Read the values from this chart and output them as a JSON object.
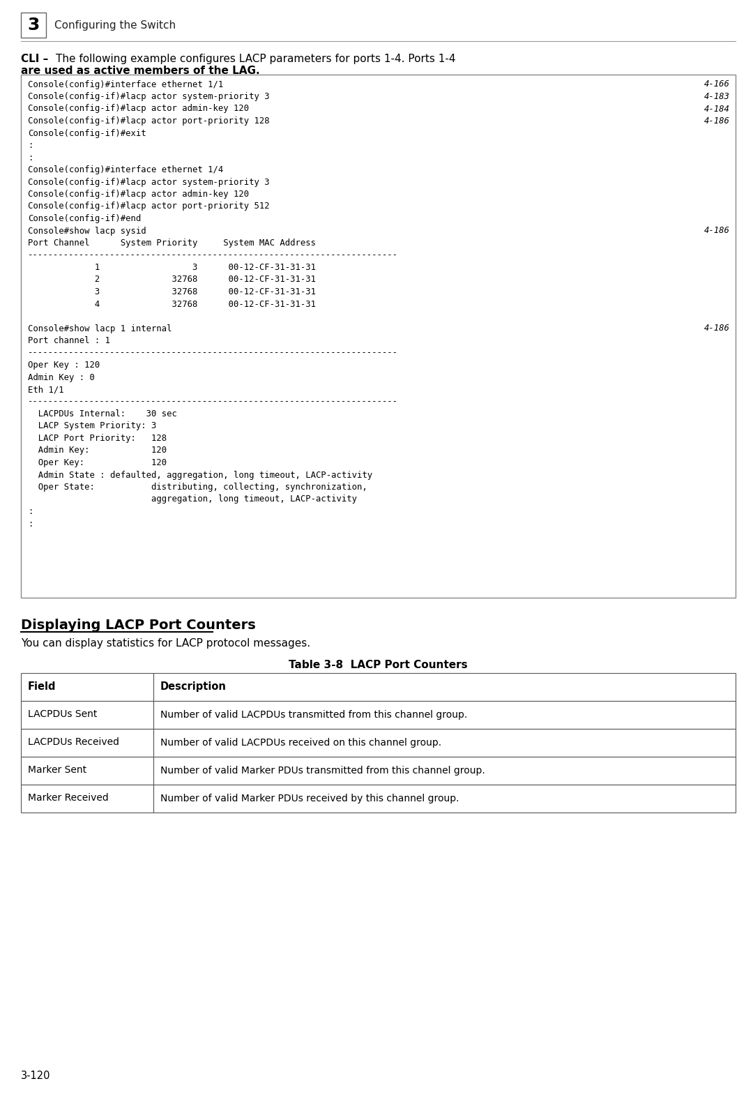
{
  "page_number": "3-120",
  "chapter_num": "3",
  "chapter_title": "Configuring the Switch",
  "cli_line1": "CLI – The following example configures LACP parameters for ports 1-4. Ports 1-4",
  "cli_line1_bold_prefix": "CLI – ",
  "cli_line1_normal": "The following example configures LACP parameters for ports 1-4. Ports 1-4",
  "cli_line2": "are used as active members of the LAG.",
  "code_lines": [
    [
      "Console(config)#interface ethernet 1/1",
      "4-166"
    ],
    [
      "Console(config-if)#lacp actor system-priority 3",
      "4-183"
    ],
    [
      "Console(config-if)#lacp actor admin-key 120",
      "4-184"
    ],
    [
      "Console(config-if)#lacp actor port-priority 128",
      "4-186"
    ],
    [
      "Console(config-if)#exit",
      ""
    ],
    [
      ":",
      ""
    ],
    [
      ":",
      ""
    ],
    [
      "Console(config)#interface ethernet 1/4",
      ""
    ],
    [
      "Console(config-if)#lacp actor system-priority 3",
      ""
    ],
    [
      "Console(config-if)#lacp actor admin-key 120",
      ""
    ],
    [
      "Console(config-if)#lacp actor port-priority 512",
      ""
    ],
    [
      "Console(config-if)#end",
      ""
    ],
    [
      "Console#show lacp sysid",
      "4-186"
    ],
    [
      "Port Channel      System Priority     System MAC Address",
      ""
    ],
    [
      "------------------------------------------------------------------------",
      ""
    ],
    [
      "             1                  3      00-12-CF-31-31-31",
      ""
    ],
    [
      "             2              32768      00-12-CF-31-31-31",
      ""
    ],
    [
      "             3              32768      00-12-CF-31-31-31",
      ""
    ],
    [
      "             4              32768      00-12-CF-31-31-31",
      ""
    ],
    [
      "",
      ""
    ],
    [
      "Console#show lacp 1 internal",
      "4-186"
    ],
    [
      "Port channel : 1",
      ""
    ],
    [
      "------------------------------------------------------------------------",
      ""
    ],
    [
      "Oper Key : 120",
      ""
    ],
    [
      "Admin Key : 0",
      ""
    ],
    [
      "Eth 1/1",
      ""
    ],
    [
      "------------------------------------------------------------------------",
      ""
    ],
    [
      "  LACPDUs Internal:    30 sec",
      ""
    ],
    [
      "  LACP System Priority: 3",
      ""
    ],
    [
      "  LACP Port Priority:   128",
      ""
    ],
    [
      "  Admin Key:            120",
      ""
    ],
    [
      "  Oper Key:             120",
      ""
    ],
    [
      "  Admin State : defaulted, aggregation, long timeout, LACP-activity",
      ""
    ],
    [
      "  Oper State:           distributing, collecting, synchronization,",
      ""
    ],
    [
      "                        aggregation, long timeout, LACP-activity",
      ""
    ],
    [
      ":",
      ""
    ],
    [
      ":",
      ""
    ]
  ],
  "section_heading": "Displaying LACP Port Counters",
  "section_body": "You can display statistics for LACP protocol messages.",
  "table_title": "Table 3-8  LACP Port Counters",
  "table_headers": [
    "Field",
    "Description"
  ],
  "table_rows": [
    [
      "LACPDUs Sent",
      "Number of valid LACPDUs transmitted from this channel group."
    ],
    [
      "LACPDUs Received",
      "Number of valid LACPDUs received on this channel group."
    ],
    [
      "Marker Sent",
      "Number of valid Marker PDUs transmitted from this channel group."
    ],
    [
      "Marker Received",
      "Number of valid Marker PDUs received by this channel group."
    ]
  ],
  "bg_color": "#ffffff",
  "code_border": "#888888",
  "code_bg": "#ffffff",
  "table_border": "#555555"
}
